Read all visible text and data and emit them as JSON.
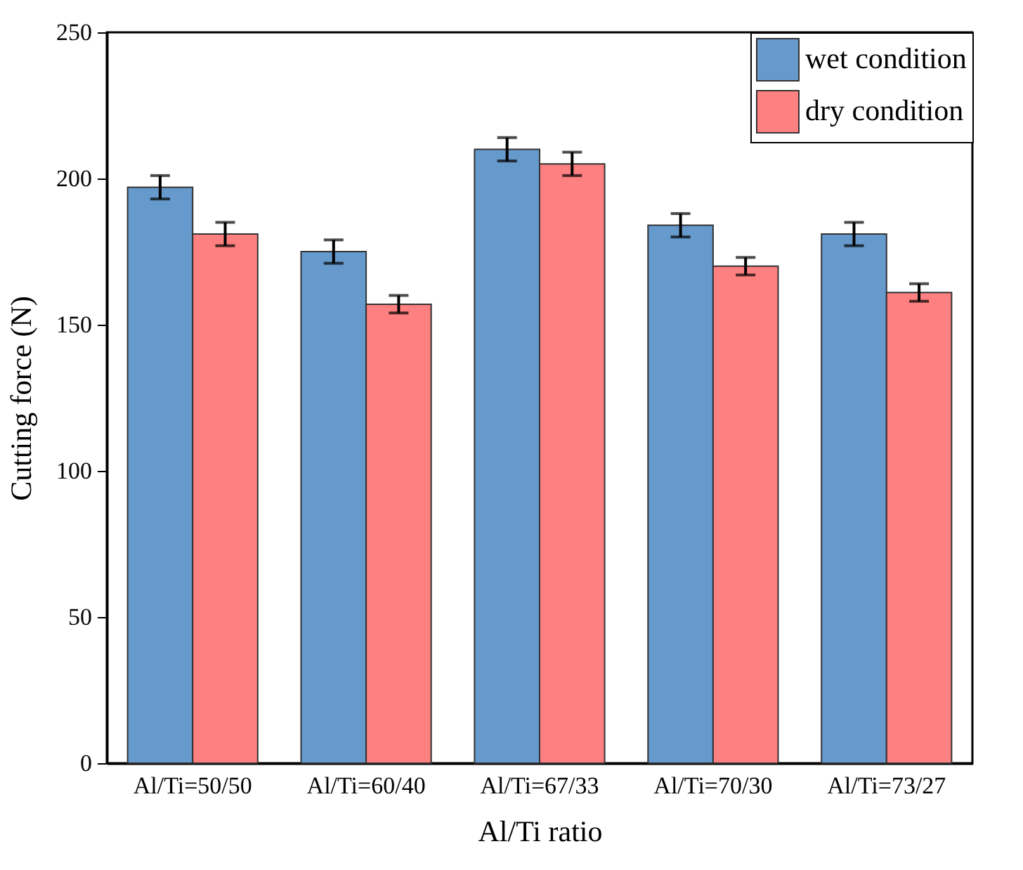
{
  "chart_data": {
    "type": "bar",
    "xlabel": "Al/Ti ratio",
    "ylabel": "Cutting force (N)",
    "categories": [
      "Al/Ti=50/50",
      "Al/Ti=60/40",
      "Al/Ti=67/33",
      "Al/Ti=70/30",
      "Al/Ti=73/27"
    ],
    "series": [
      {
        "name": "wet condition",
        "color": "#6699cc",
        "values": [
          197,
          175,
          210,
          184,
          181
        ],
        "errors": [
          4,
          4,
          4,
          4,
          4
        ]
      },
      {
        "name": "dry condition",
        "color": "#ff8080",
        "values": [
          181,
          157,
          205,
          170,
          161
        ],
        "errors": [
          4,
          3,
          4,
          3,
          3
        ]
      }
    ],
    "ylim": [
      0,
      250
    ],
    "yticks": [
      0,
      50,
      100,
      150,
      200,
      250
    ],
    "grid": false,
    "legend": "top right"
  }
}
